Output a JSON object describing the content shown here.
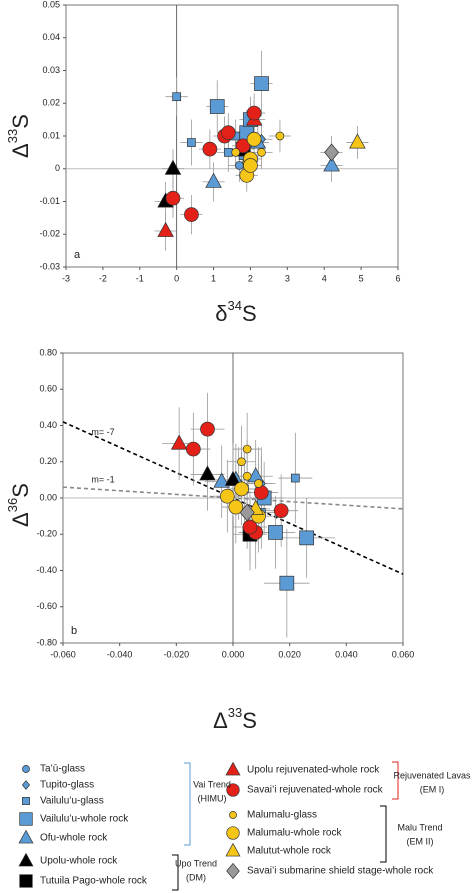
{
  "chart_data": [
    {
      "type": "scatter",
      "panel_label": "a",
      "xlabel": [
        "δ",
        "34",
        "S"
      ],
      "ylabel": [
        "Δ",
        "33",
        "S"
      ],
      "xlim": [
        -3,
        6
      ],
      "ylim": [
        -0.03,
        0.05
      ],
      "xticks": [
        -3,
        -2,
        -1,
        0,
        1,
        2,
        3,
        4,
        5,
        6
      ],
      "yticks": [
        -0.03,
        -0.02,
        -0.01,
        0,
        0.01,
        0.02,
        0.03,
        0.04,
        0.05
      ],
      "series": [
        {
          "name": "Ta’ū-glass",
          "color": "#5b9bd5",
          "marker": "circle",
          "size": "small",
          "x": [
            1.7
          ],
          "values": [
            0.001
          ],
          "xerr": [
            0.3
          ],
          "yerr": [
            0.005
          ]
        },
        {
          "name": "Tupito-glass",
          "color": "#5b9bd5",
          "marker": "diamond",
          "size": "small",
          "x": [
            2.3
          ],
          "values": [
            0.009
          ],
          "xerr": [
            0.3
          ],
          "yerr": [
            0.005
          ]
        },
        {
          "name": "Vailulu’u-glass",
          "color": "#5b9bd5",
          "marker": "square",
          "size": "small",
          "x": [
            0.0,
            0.4,
            1.4,
            1.6,
            1.8
          ],
          "values": [
            0.022,
            0.008,
            0.005,
            0.01,
            0.004
          ],
          "xerr": [
            0.3,
            0.3,
            0.3,
            0.3,
            0.3
          ],
          "yerr": [
            0.006,
            0.007,
            0.006,
            0.005,
            0.006
          ]
        },
        {
          "name": "Vailulu’u-whole rock",
          "color": "#5b9bd5",
          "marker": "square",
          "size": "large",
          "x": [
            1.1,
            2.3,
            1.9,
            2.0
          ],
          "values": [
            0.019,
            0.026,
            0.011,
            0.015
          ],
          "xerr": [
            0.3,
            0.3,
            0.3,
            0.3
          ],
          "yerr": [
            0.008,
            0.01,
            0.007,
            0.007
          ]
        },
        {
          "name": "Ofu-whole rock",
          "color": "#5b9bd5",
          "marker": "triangle",
          "size": "large",
          "x": [
            1.0,
            4.2,
            2.2
          ],
          "values": [
            -0.004,
            0.001,
            0.008
          ],
          "xerr": [
            0.3,
            0.3,
            0.3
          ],
          "yerr": [
            0.006,
            0.005,
            0.006
          ]
        },
        {
          "name": "Upolu-whole rock",
          "color": "#000000",
          "marker": "triangle",
          "size": "large",
          "x": [
            -0.1,
            -0.3
          ],
          "values": [
            0.0,
            -0.01
          ],
          "xerr": [
            0.3,
            0.3
          ],
          "yerr": [
            0.006,
            0.006
          ]
        },
        {
          "name": "Tutuila Pago-whole rock",
          "color": "#000000",
          "marker": "square",
          "size": "large",
          "x": [
            1.8
          ],
          "values": [
            0.006
          ],
          "xerr": [
            0.3
          ],
          "yerr": [
            0.006
          ]
        },
        {
          "name": "Upolu rejuvenated-whole rock",
          "color": "#e32119",
          "marker": "triangle",
          "size": "large",
          "x": [
            -0.3,
            2.1
          ],
          "values": [
            -0.019,
            0.015
          ],
          "xerr": [
            0.3,
            0.3
          ],
          "yerr": [
            0.006,
            0.006
          ]
        },
        {
          "name": "Savai’i rejuvenated-whole rock",
          "color": "#e32119",
          "marker": "circle",
          "size": "large",
          "x": [
            -0.1,
            0.4,
            0.9,
            1.3,
            1.4,
            2.1,
            1.8
          ],
          "values": [
            -0.009,
            -0.014,
            0.006,
            0.01,
            0.011,
            0.017,
            0.007
          ],
          "xerr": [
            0.3,
            0.3,
            0.3,
            0.3,
            0.3,
            0.3,
            0.3
          ],
          "yerr": [
            0.006,
            0.006,
            0.006,
            0.006,
            0.006,
            0.006,
            0.006
          ]
        },
        {
          "name": "Malumalu-glass",
          "color": "#f5c518",
          "marker": "circle",
          "size": "small",
          "x": [
            1.6,
            2.8,
            2.3,
            1.9
          ],
          "values": [
            0.005,
            0.01,
            0.005,
            0.002
          ],
          "xerr": [
            0.3,
            0.3,
            0.3,
            0.3
          ],
          "yerr": [
            0.005,
            0.005,
            0.005,
            0.005
          ]
        },
        {
          "name": "Malumalu-whole rock",
          "color": "#f5c518",
          "marker": "circle",
          "size": "large",
          "x": [
            2.0,
            1.9,
            2.1,
            2.0
          ],
          "values": [
            0.003,
            -0.002,
            0.009,
            0.001
          ],
          "xerr": [
            0.3,
            0.3,
            0.3,
            0.3
          ],
          "yerr": [
            0.005,
            0.005,
            0.005,
            0.005
          ]
        },
        {
          "name": "Malutut-whole rock",
          "color": "#f5c518",
          "marker": "triangle",
          "size": "large",
          "x": [
            4.9
          ],
          "values": [
            0.008
          ],
          "xerr": [
            0.3
          ],
          "yerr": [
            0.005
          ]
        },
        {
          "name": "Savai’i submarine shield stage-whole rock",
          "color": "#999999",
          "marker": "diamond",
          "size": "large",
          "x": [
            4.2
          ],
          "values": [
            0.005
          ],
          "xerr": [
            0.3
          ],
          "yerr": [
            0.005
          ]
        }
      ],
      "legend_groups": [
        {
          "lines": [
            "Vai Trend",
            "(HIMU)"
          ],
          "color": "#5b9bd5"
        },
        {
          "lines": [
            "Upo Trend",
            "(DM)"
          ],
          "color": "#000000"
        },
        {
          "lines": [
            "Rejuvenated Lavas",
            "(EM I)"
          ],
          "color": "#e32119"
        },
        {
          "lines": [
            "Malu Trend",
            "(EM II)"
          ],
          "color": "#000000"
        }
      ]
    },
    {
      "type": "scatter",
      "panel_label": "b",
      "xlabel": [
        "Δ",
        "33",
        "S"
      ],
      "ylabel": [
        "Δ",
        "36",
        "S"
      ],
      "xlim": [
        -0.06,
        0.06
      ],
      "ylim": [
        -0.8,
        0.8
      ],
      "xticks": [
        {
          "value": -0.06,
          "label": "-0.060"
        },
        {
          "value": -0.04,
          "label": "-0.040"
        },
        {
          "value": -0.02,
          "label": "-0.020"
        },
        {
          "value": 0,
          "label": "0.000"
        },
        {
          "value": 0.02,
          "label": "0.020"
        },
        {
          "value": 0.04,
          "label": "0.040"
        },
        {
          "value": 0.06,
          "label": "0.060"
        }
      ],
      "yticks": [
        {
          "value": -0.8,
          "label": "-0.80"
        },
        {
          "value": -0.6,
          "label": "-0.60"
        },
        {
          "value": -0.4,
          "label": "-0.40"
        },
        {
          "value": -0.2,
          "label": "-0.20"
        },
        {
          "value": 0,
          "label": "0.00"
        },
        {
          "value": 0.2,
          "label": "0.20"
        },
        {
          "value": 0.4,
          "label": "0.40"
        },
        {
          "value": 0.6,
          "label": "0.60"
        },
        {
          "value": 0.8,
          "label": "0.80"
        }
      ],
      "lines": [
        {
          "name": "m= -7",
          "color": "#000000",
          "x": [
            -0.06,
            0.06
          ],
          "values": [
            0.42,
            -0.42
          ],
          "label_at": [
            -0.05,
            0.36
          ]
        },
        {
          "name": "m= -1",
          "color": "#888888",
          "x": [
            -0.06,
            0.06
          ],
          "values": [
            0.06,
            -0.06
          ],
          "label_at": [
            -0.05,
            0.1
          ]
        }
      ],
      "series": [
        {
          "name": "Ta’ū-glass",
          "color": "#5b9bd5",
          "marker": "circle",
          "size": "small",
          "x": [
            0.002
          ],
          "values": [
            0.08
          ],
          "xerr": [
            0.005
          ],
          "yerr": [
            0.2
          ]
        },
        {
          "name": "Tupito-glass",
          "color": "#5b9bd5",
          "marker": "diamond",
          "size": "small",
          "x": [
            0.01
          ],
          "values": [
            0.08
          ],
          "xerr": [
            0.005
          ],
          "yerr": [
            0.2
          ]
        },
        {
          "name": "Vailulu’u-glass",
          "color": "#5b9bd5",
          "marker": "square",
          "size": "small",
          "x": [
            0.022,
            0.004,
            0.01
          ],
          "values": [
            0.11,
            0.05,
            -0.08
          ],
          "xerr": [
            0.006,
            0.006,
            0.006
          ],
          "yerr": [
            0.25,
            0.2,
            0.2
          ]
        },
        {
          "name": "Vailulu’u-whole rock",
          "color": "#5b9bd5",
          "marker": "square",
          "size": "large",
          "x": [
            0.019,
            0.026,
            0.015,
            0.011
          ],
          "values": [
            -0.47,
            -0.22,
            -0.19,
            0.0
          ],
          "xerr": [
            0.008,
            0.01,
            0.007,
            0.007
          ],
          "yerr": [
            0.3,
            0.22,
            0.2,
            0.2
          ]
        },
        {
          "name": "Ofu-whole rock",
          "color": "#5b9bd5",
          "marker": "triangle",
          "size": "large",
          "x": [
            0.001,
            0.008,
            -0.004
          ],
          "values": [
            0.1,
            0.12,
            0.09
          ],
          "xerr": [
            0.005,
            0.006,
            0.006
          ],
          "yerr": [
            0.2,
            0.2,
            0.2
          ]
        },
        {
          "name": "Upolu-whole rock",
          "color": "#000000",
          "marker": "triangle",
          "size": "large",
          "x": [
            0.0,
            -0.009
          ],
          "values": [
            0.1,
            0.13
          ],
          "xerr": [
            0.006,
            0.006
          ],
          "yerr": [
            0.2,
            0.2
          ]
        },
        {
          "name": "Tutuila Pago-whole rock",
          "color": "#000000",
          "marker": "square",
          "size": "large",
          "x": [
            0.006
          ],
          "values": [
            -0.2
          ],
          "xerr": [
            0.006
          ],
          "yerr": [
            0.2
          ]
        },
        {
          "name": "Upolu rejuvenated-whole rock",
          "color": "#e32119",
          "marker": "triangle",
          "size": "large",
          "x": [
            -0.019
          ],
          "values": [
            0.3
          ],
          "xerr": [
            0.006
          ],
          "yerr": [
            0.2
          ]
        },
        {
          "name": "Savai’i rejuvenated-whole rock",
          "color": "#e32119",
          "marker": "circle",
          "size": "large",
          "x": [
            -0.009,
            -0.014,
            0.017,
            0.01,
            0.008,
            0.006
          ],
          "values": [
            0.38,
            0.27,
            -0.07,
            0.03,
            -0.19,
            -0.16
          ],
          "xerr": [
            0.006,
            0.006,
            0.006,
            0.006,
            0.006,
            0.006
          ],
          "yerr": [
            0.2,
            0.2,
            0.2,
            0.2,
            0.2,
            0.2
          ]
        },
        {
          "name": "Malumalu-glass",
          "color": "#f5c518",
          "marker": "circle",
          "size": "small",
          "x": [
            0.005,
            0.003,
            0.009,
            0.005
          ],
          "values": [
            0.27,
            0.2,
            0.08,
            0.12
          ],
          "xerr": [
            0.005,
            0.005,
            0.005,
            0.005
          ],
          "yerr": [
            0.2,
            0.2,
            0.2,
            0.2
          ]
        },
        {
          "name": "Malumalu-whole rock",
          "color": "#f5c518",
          "marker": "circle",
          "size": "large",
          "x": [
            0.003,
            -0.002,
            0.009,
            0.001
          ],
          "values": [
            0.05,
            0.01,
            -0.1,
            -0.05
          ],
          "xerr": [
            0.005,
            0.005,
            0.005,
            0.005
          ],
          "yerr": [
            0.2,
            0.2,
            0.2,
            0.2
          ]
        },
        {
          "name": "Malutut-whole rock",
          "color": "#f5c518",
          "marker": "triangle",
          "size": "large",
          "x": [
            0.008
          ],
          "values": [
            -0.06
          ],
          "xerr": [
            0.005
          ],
          "yerr": [
            0.2
          ]
        },
        {
          "name": "Savai’i submarine shield stage-whole rock",
          "color": "#999999",
          "marker": "diamond",
          "size": "large",
          "x": [
            0.005
          ],
          "values": [
            -0.08
          ],
          "xerr": [
            0.005
          ],
          "yerr": [
            0.2
          ]
        }
      ]
    }
  ]
}
